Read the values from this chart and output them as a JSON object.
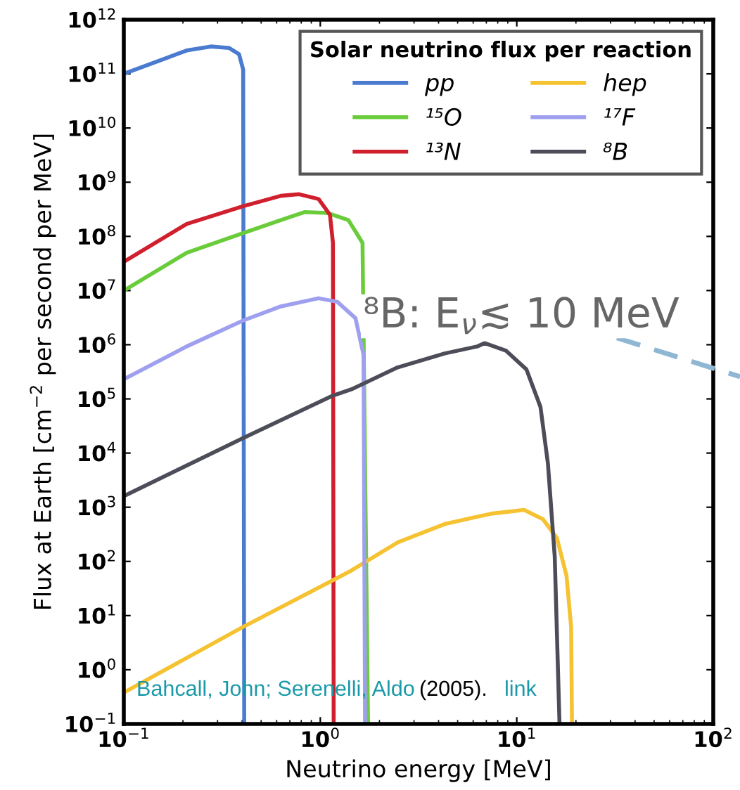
{
  "chart_data": {
    "type": "line",
    "xlabel": "Neutrino energy [MeV]",
    "ylabel": "Flux at Earth [cm$^{−2}$ per second per MeV]",
    "legend_title": "Solar neutrino flux per reaction",
    "legend": "top right",
    "log": "xy",
    "grid": false,
    "xlim": [
      0.1,
      100
    ],
    "ylim": [
      0.1,
      1000000000000.0
    ],
    "xticks": [
      {
        "value": 0.1,
        "label": "10$^{−1}$"
      },
      {
        "value": 1,
        "label": "10$^{0}$"
      },
      {
        "value": 10,
        "label": "10$^{1}$"
      },
      {
        "value": 100,
        "label": "10$^{2}$"
      }
    ],
    "yticks": [
      {
        "value": 0.1,
        "label": "10$^{−1}$"
      },
      {
        "value": 1,
        "label": "10$^{0}$"
      },
      {
        "value": 10,
        "label": "10$^{1}$"
      },
      {
        "value": 100,
        "label": "10$^{2}$"
      },
      {
        "value": 1000,
        "label": "10$^{3}$"
      },
      {
        "value": 10000.0,
        "label": "10$^{4}$"
      },
      {
        "value": 100000.0,
        "label": "10$^{5}$"
      },
      {
        "value": 1000000.0,
        "label": "10$^{6}$"
      },
      {
        "value": 10000000.0,
        "label": "10$^{7}$"
      },
      {
        "value": 100000000.0,
        "label": "10$^{8}$"
      },
      {
        "value": 1000000000.0,
        "label": "10$^{9}$"
      },
      {
        "value": 10000000000.0,
        "label": "10$^{10}$"
      },
      {
        "value": 100000000000.0,
        "label": "10$^{11}$"
      },
      {
        "value": 1000000000000.0,
        "label": "10$^{12}$"
      }
    ],
    "series": [
      {
        "name": "pp",
        "color": "#4a7bd0",
        "x": [
          0.1,
          0.161,
          0.209,
          0.277,
          0.344,
          0.386,
          0.405,
          0.41
        ],
        "values": [
          100000000000.0,
          190000000000.0,
          270000000000.0,
          320000000000.0,
          300000000000.0,
          230000000000.0,
          120000000000.0,
          0.1
        ]
      },
      {
        "name": "¹⁵O",
        "color": "#6acc3a",
        "x": [
          0.1,
          0.209,
          0.405,
          0.63,
          0.83,
          1.09,
          1.39,
          1.64,
          1.75
        ],
        "values": [
          10000000.0,
          50000000.0,
          115000000.0,
          200000000.0,
          280000000.0,
          270000000.0,
          200000000.0,
          76000000.0,
          0.1
        ]
      },
      {
        "name": "¹³N",
        "color": "#d0202e",
        "x": [
          0.1,
          0.209,
          0.405,
          0.63,
          0.78,
          0.98,
          1.12,
          1.16,
          1.17
        ],
        "values": [
          34000000.0,
          170000000.0,
          360000000.0,
          560000000.0,
          600000000.0,
          490000000.0,
          250000000.0,
          76000000.0,
          0.1
        ]
      },
      {
        "name": "hep",
        "color": "#f5c231",
        "x": [
          0.1,
          0.405,
          1.16,
          1.44,
          2.48,
          4.3,
          7.4,
          10.9,
          13.6,
          16.0,
          17.9,
          18.9,
          19.1
        ],
        "values": [
          0.38,
          6.2,
          45,
          68,
          225,
          490,
          760,
          890,
          600,
          270,
          55,
          6.2,
          0.1
        ]
      },
      {
        "name": "¹⁷F",
        "color": "#9f9ff0",
        "x": [
          0.1,
          0.209,
          0.405,
          0.63,
          0.98,
          1.22,
          1.51,
          1.66,
          1.69
        ],
        "values": [
          230000.0,
          930000.0,
          2800000.0,
          5100000.0,
          7200000.0,
          6200000.0,
          3100000.0,
          650000.0,
          0.1
        ]
      },
      {
        "name": "⁸B",
        "color": "#4d4d59",
        "x": [
          0.1,
          0.405,
          1.16,
          1.44,
          2.47,
          4.3,
          6.3,
          6.85,
          8.8,
          11.2,
          13.2,
          14.4,
          15.6,
          16.5
        ],
        "values": [
          1600,
          19000.0,
          115000.0,
          150000.0,
          380000.0,
          690000.0,
          930000.0,
          1070000.0,
          780000.0,
          350000.0,
          71000.0,
          6500,
          123,
          0.1
        ]
      }
    ],
    "annotations": [
      "⁸B: E$_{ν}$≲ 10 MeV",
      "Bahcall, John; Serenelli, Aldo",
      "(2005).",
      "link"
    ]
  }
}
